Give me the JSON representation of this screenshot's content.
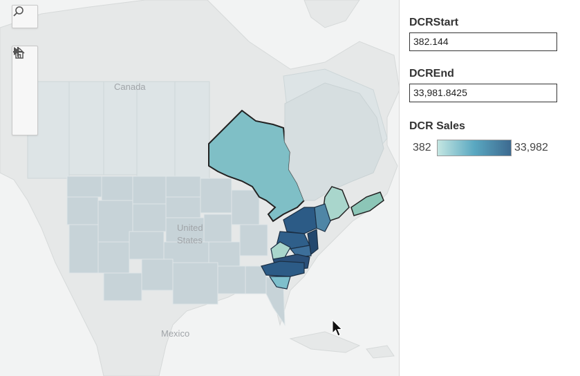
{
  "map": {
    "labels": {
      "canada": "Canada",
      "united": "United",
      "states": "States",
      "mexico": "Mexico"
    },
    "colors": {
      "background": "#f2f3f3",
      "land": "#e4e6e6",
      "faded_states": "#c9d4d8",
      "ontario": "#7fbfc6",
      "dark_states": "#2c5b86",
      "light_states": "#a9d6cc"
    }
  },
  "controls": {
    "search": "search-icon",
    "zoom_in": "plus-icon",
    "zoom_out": "minus-icon",
    "home": "home-icon",
    "expand": "play-icon"
  },
  "panel": {
    "start": {
      "title": "DCRStart",
      "value": "382.144"
    },
    "end": {
      "title": "DCREnd",
      "value": "33,981.8425"
    },
    "legend": {
      "title": "DCR Sales",
      "min_label": "382",
      "max_label": "33,982",
      "color_low": "#c4e6e2",
      "color_high": "#3d6a90"
    }
  }
}
